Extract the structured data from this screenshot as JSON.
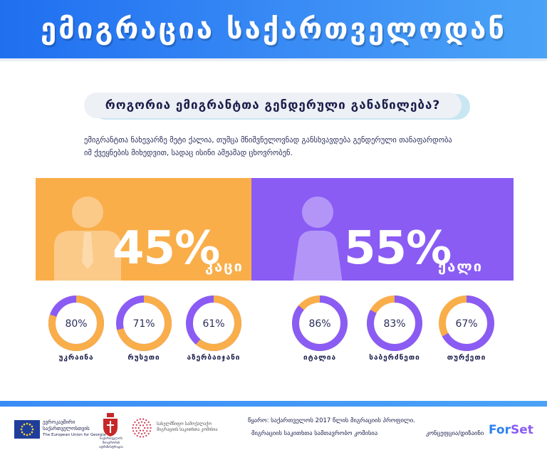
{
  "header": {
    "title": "ემიგრაცია საქართველოდან"
  },
  "question": "როგორია ემიგრანტთა გენდერული განაწილება?",
  "intro": {
    "line1": "ემიგრანტთა ნახევარზე მეტი ქალია, თუმცა მნიშვნელოვნად განსხვავდება გენდერული თანაფარდობა",
    "line2": "იმ ქვეყნების მიხედვით, სადაც ისინი ამჟამად ცხოვრობენ."
  },
  "colors": {
    "male": "#f9ae4a",
    "female": "#8a5cf4",
    "header": "#2f80f2",
    "text": "#1a1d4a"
  },
  "chart_data": [
    {
      "type": "bar",
      "categories": [
        "კაცი",
        "ქალი"
      ],
      "values": [
        45,
        55
      ],
      "labels": [
        "45%",
        "55%"
      ],
      "ylim": [
        0,
        100
      ]
    },
    {
      "type": "pie",
      "series": [
        {
          "name": "კაცი",
          "countries": [
            {
              "country": "უკრაინა",
              "value": 80,
              "label": "80%"
            },
            {
              "country": "რუსეთი",
              "value": 71,
              "label": "71%"
            },
            {
              "country": "აზერბაიჯანი",
              "value": 61,
              "label": "61%"
            }
          ]
        },
        {
          "name": "ქალი",
          "countries": [
            {
              "country": "იტალია",
              "value": 86,
              "label": "86%"
            },
            {
              "country": "საბერძნეთი",
              "value": 83,
              "label": "83%"
            },
            {
              "country": "თურქეთი",
              "value": 67,
              "label": "67%"
            }
          ]
        }
      ]
    }
  ],
  "footer": {
    "eu_text1": "ევროკავშირი",
    "eu_text2": "საქართველოსთვის",
    "eu_text3": "The European Union for Georgia",
    "gov_text1": "საქართველოს",
    "gov_text2": "მთავრობის ადმინისტრაცია",
    "commission_text1": "სახელმწიფო სამოქალაქო",
    "commission_text2": "მიგრაციის საკითხთა კომისია",
    "source_line1": "წყარო: საქართველოს 2017 წლის მიგრაციის პროფილი.",
    "source_line2": "მიგრაციის საკითხთა სამთავრობო კომისია",
    "credit": "კონცეფცია/დიზაინი",
    "brand_part1": "For",
    "brand_part2": "Set"
  }
}
